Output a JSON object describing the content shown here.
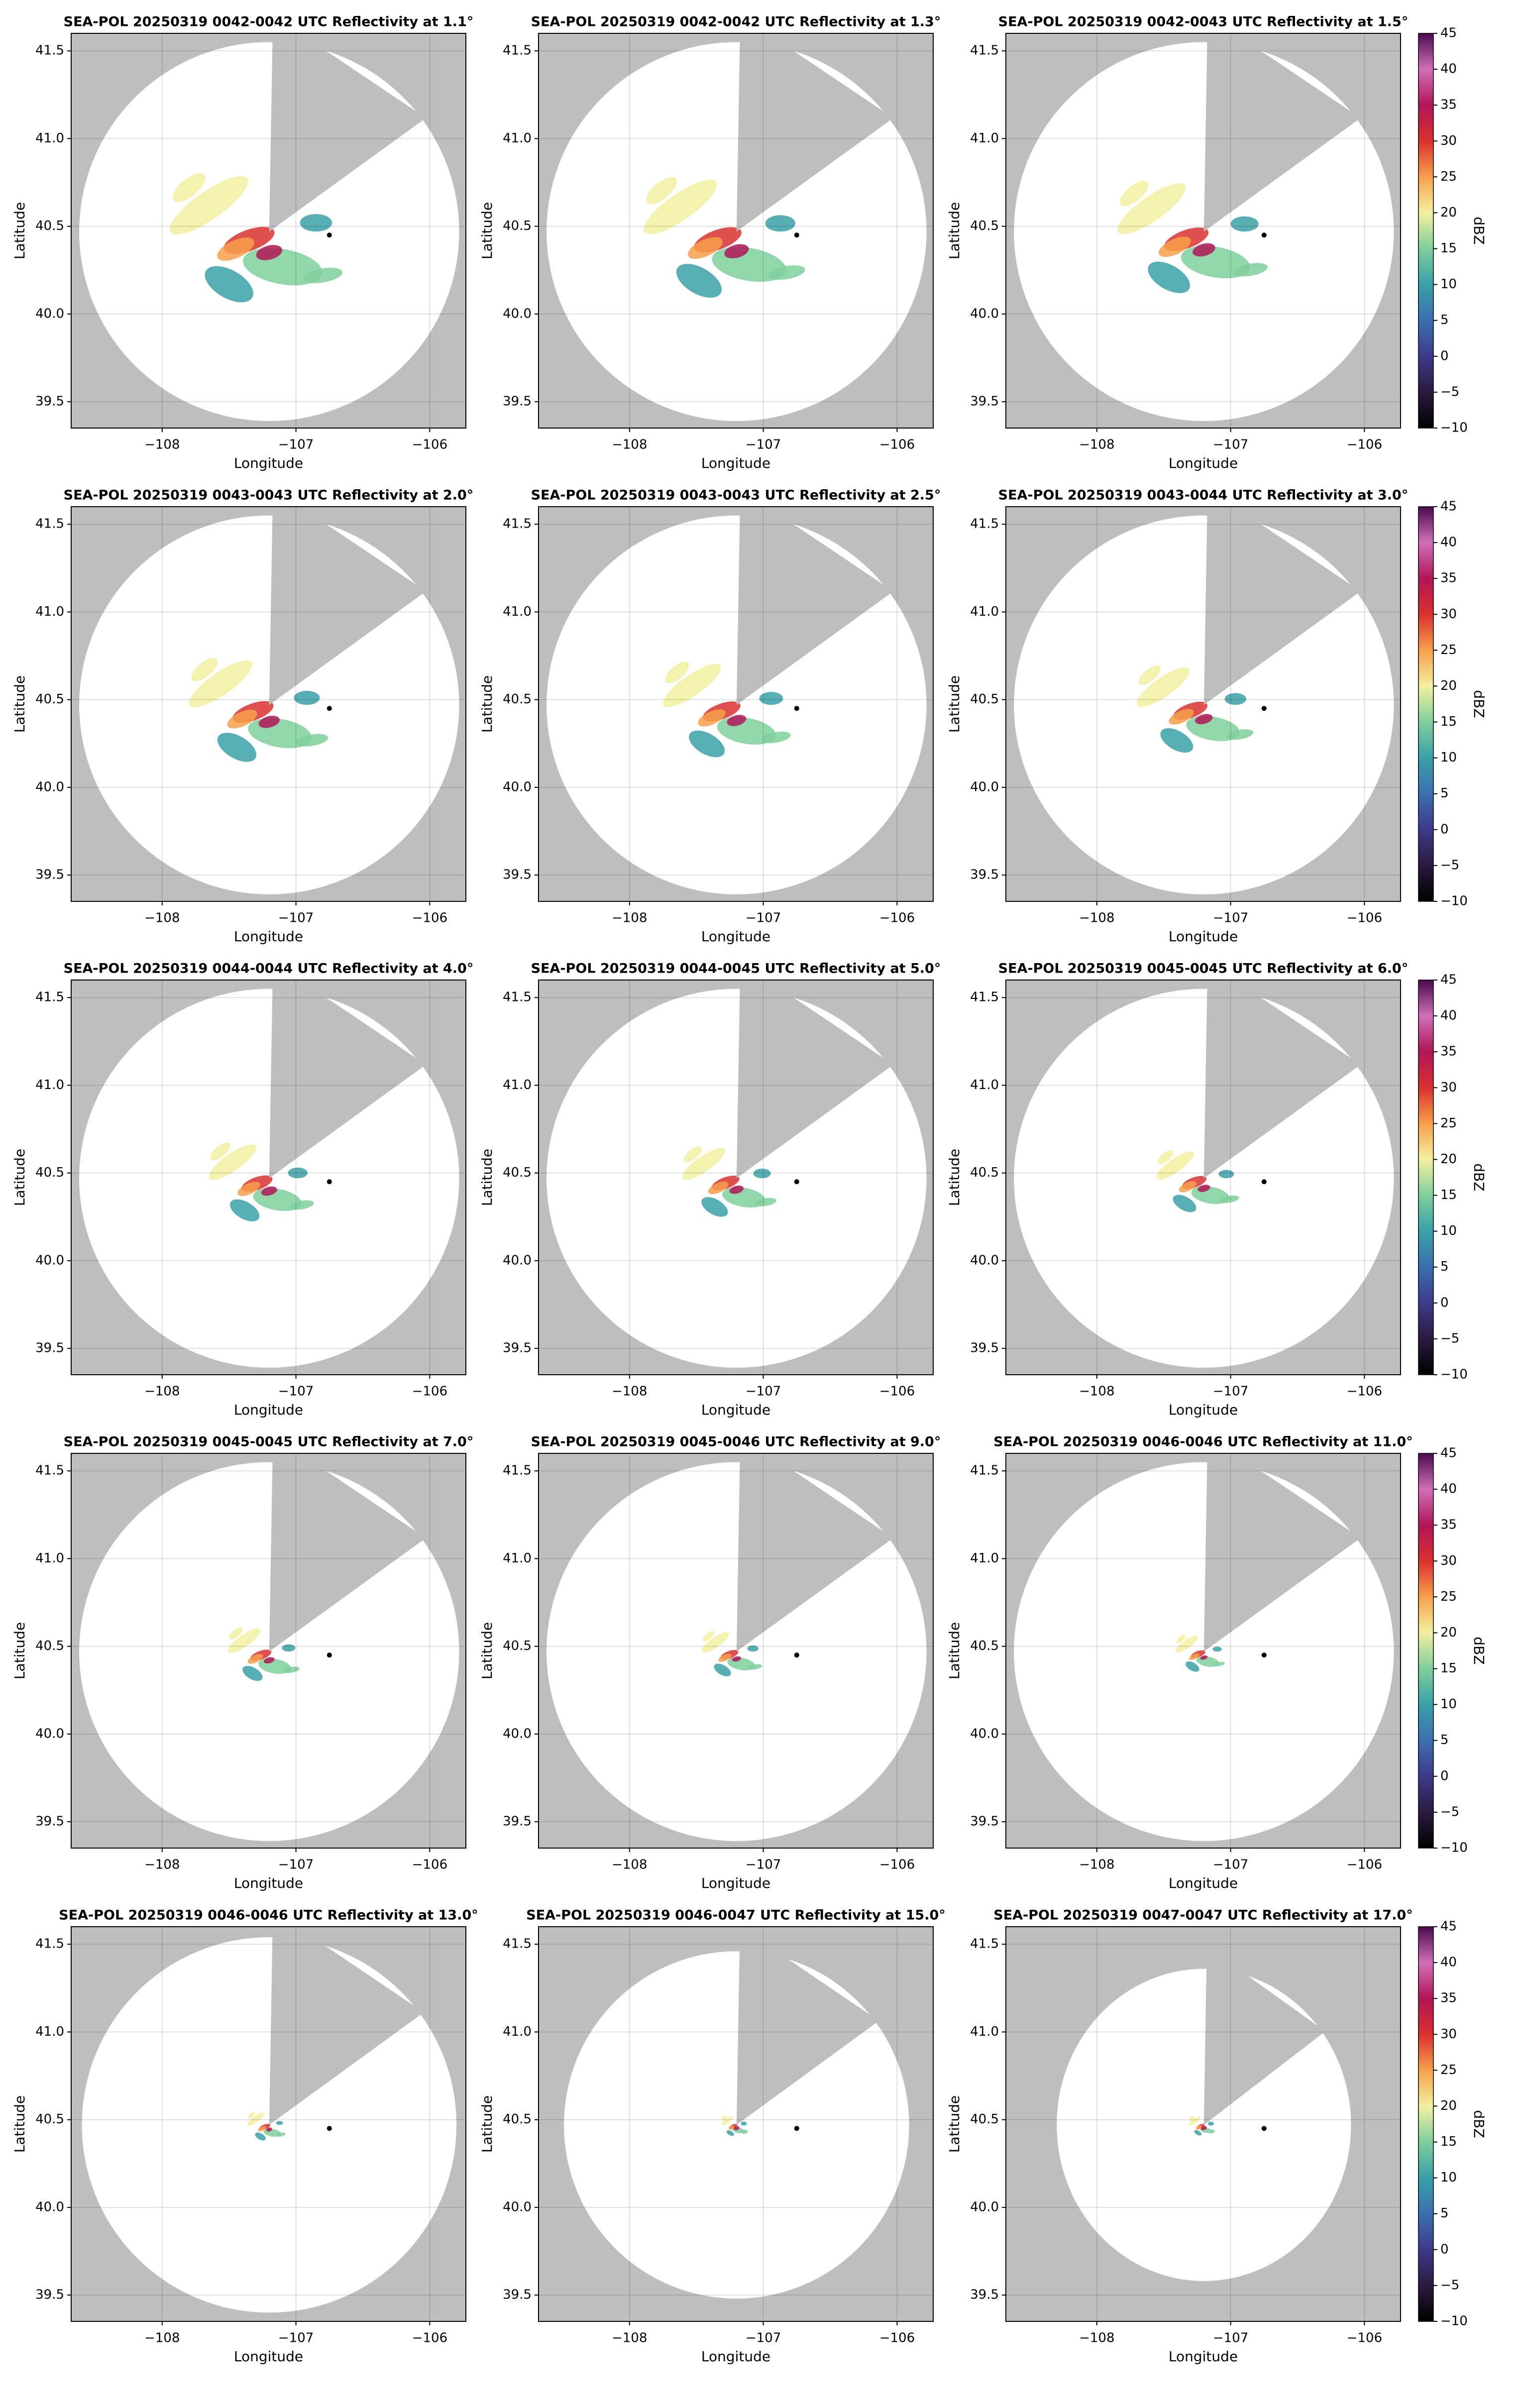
{
  "chart_data": [
    {
      "type": "radar",
      "title": "SEA-POL 20250319 0042-0042 UTC Reflectivity at 1.1°",
      "x_label": "Longitude",
      "y_label": "Latitude",
      "xlim": [
        -108.68,
        -105.73
      ],
      "ylim": [
        39.35,
        41.6
      ],
      "xticks": [
        {
          "value": -108,
          "label": "−108"
        },
        {
          "value": -107,
          "label": "−107"
        },
        {
          "value": -106,
          "label": "−106"
        }
      ],
      "yticks": [
        39.5,
        {
          "value": 40,
          "label": "40.0"
        },
        40.5,
        {
          "value": 41,
          "label": "41.0"
        },
        41.5
      ],
      "grid": true,
      "radar_center": [
        -107.2,
        40.47
      ],
      "coverage_radius": [
        1.42,
        1.08
      ],
      "blocked_azimuths": [
        1,
        14,
        54
      ],
      "site_marker": [
        -106.75,
        40.45
      ]
    },
    {
      "type": "radar",
      "title": "SEA-POL 20250319 0042-0042 UTC Reflectivity at 1.3°",
      "x_label": "Longitude",
      "y_label": "Latitude",
      "xlim": [
        -108.68,
        -105.73
      ],
      "ylim": [
        39.35,
        41.6
      ],
      "xticks": [
        {
          "value": -108,
          "label": "−108"
        },
        {
          "value": -107,
          "label": "−107"
        },
        {
          "value": -106,
          "label": "−106"
        }
      ],
      "yticks": [
        39.5,
        {
          "value": 40,
          "label": "40.0"
        },
        40.5,
        {
          "value": 41,
          "label": "41.0"
        },
        41.5
      ],
      "grid": true,
      "radar_center": [
        -107.2,
        40.47
      ],
      "coverage_radius": [
        1.42,
        1.08
      ],
      "blocked_azimuths": [
        1,
        14,
        54
      ],
      "site_marker": [
        -106.75,
        40.45
      ]
    },
    {
      "type": "radar",
      "title": "SEA-POL 20250319 0042-0043 UTC Reflectivity at 1.5°",
      "x_label": "Longitude",
      "y_label": "Latitude",
      "xlim": [
        -108.68,
        -105.73
      ],
      "ylim": [
        39.35,
        41.6
      ],
      "xticks": [
        {
          "value": -108,
          "label": "−108"
        },
        {
          "value": -107,
          "label": "−107"
        },
        {
          "value": -106,
          "label": "−106"
        }
      ],
      "yticks": [
        39.5,
        {
          "value": 40,
          "label": "40.0"
        },
        40.5,
        {
          "value": 41,
          "label": "41.0"
        },
        41.5
      ],
      "grid": true,
      "radar_center": [
        -107.2,
        40.47
      ],
      "coverage_radius": [
        1.42,
        1.08
      ],
      "blocked_azimuths": [
        1,
        14,
        54
      ],
      "site_marker": [
        -106.75,
        40.45
      ],
      "colorbar": {
        "label": "dBZ",
        "lim": [
          -10,
          45
        ],
        "ticks": [
          {
            "value": -10,
            "label": "−10"
          },
          {
            "value": -5,
            "label": "−5"
          },
          0,
          5,
          10,
          15,
          20,
          25,
          30,
          35,
          40,
          45
        ],
        "colors": [
          "#000000",
          "#2b1a3f",
          "#3d3a8a",
          "#3b6fb0",
          "#3aa0a8",
          "#7fcf9c",
          "#f2f0a0",
          "#f7a04b",
          "#d9312f",
          "#b01657",
          "#d070b8",
          "#4a0a4e"
        ]
      }
    },
    {
      "type": "radar",
      "title": "SEA-POL 20250319 0043-0043 UTC Reflectivity at 2.0°",
      "x_label": "Longitude",
      "y_label": "Latitude",
      "xlim": [
        -108.68,
        -105.73
      ],
      "ylim": [
        39.35,
        41.6
      ],
      "xticks": [
        {
          "value": -108,
          "label": "−108"
        },
        {
          "value": -107,
          "label": "−107"
        },
        {
          "value": -106,
          "label": "−106"
        }
      ],
      "yticks": [
        39.5,
        {
          "value": 40,
          "label": "40.0"
        },
        40.5,
        {
          "value": 41,
          "label": "41.0"
        },
        41.5
      ],
      "grid": true,
      "radar_center": [
        -107.2,
        40.47
      ],
      "coverage_radius": [
        1.42,
        1.08
      ],
      "blocked_azimuths": [
        1,
        14,
        54
      ],
      "site_marker": [
        -106.75,
        40.45
      ]
    },
    {
      "type": "radar",
      "title": "SEA-POL 20250319 0043-0043 UTC Reflectivity at 2.5°",
      "x_label": "Longitude",
      "y_label": "Latitude",
      "xlim": [
        -108.68,
        -105.73
      ],
      "ylim": [
        39.35,
        41.6
      ],
      "xticks": [
        {
          "value": -108,
          "label": "−108"
        },
        {
          "value": -107,
          "label": "−107"
        },
        {
          "value": -106,
          "label": "−106"
        }
      ],
      "yticks": [
        39.5,
        {
          "value": 40,
          "label": "40.0"
        },
        40.5,
        {
          "value": 41,
          "label": "41.0"
        },
        41.5
      ],
      "grid": true,
      "radar_center": [
        -107.2,
        40.47
      ],
      "coverage_radius": [
        1.42,
        1.08
      ],
      "blocked_azimuths": [
        1,
        14,
        54
      ],
      "site_marker": [
        -106.75,
        40.45
      ]
    },
    {
      "type": "radar",
      "title": "SEA-POL 20250319 0043-0044 UTC Reflectivity at 3.0°",
      "x_label": "Longitude",
      "y_label": "Latitude",
      "xlim": [
        -108.68,
        -105.73
      ],
      "ylim": [
        39.35,
        41.6
      ],
      "xticks": [
        {
          "value": -108,
          "label": "−108"
        },
        {
          "value": -107,
          "label": "−107"
        },
        {
          "value": -106,
          "label": "−106"
        }
      ],
      "yticks": [
        39.5,
        {
          "value": 40,
          "label": "40.0"
        },
        40.5,
        {
          "value": 41,
          "label": "41.0"
        },
        41.5
      ],
      "grid": true,
      "radar_center": [
        -107.2,
        40.47
      ],
      "coverage_radius": [
        1.42,
        1.08
      ],
      "blocked_azimuths": [
        1,
        14,
        54
      ],
      "site_marker": [
        -106.75,
        40.45
      ],
      "colorbar": {
        "label": "dBZ",
        "lim": [
          -10,
          45
        ],
        "ticks": [
          {
            "value": -10,
            "label": "−10"
          },
          {
            "value": -5,
            "label": "−5"
          },
          0,
          5,
          10,
          15,
          20,
          25,
          30,
          35,
          40,
          45
        ],
        "colors": [
          "#000000",
          "#2b1a3f",
          "#3d3a8a",
          "#3b6fb0",
          "#3aa0a8",
          "#7fcf9c",
          "#f2f0a0",
          "#f7a04b",
          "#d9312f",
          "#b01657",
          "#d070b8",
          "#4a0a4e"
        ]
      }
    },
    {
      "type": "radar",
      "title": "SEA-POL 20250319 0044-0044 UTC Reflectivity at 4.0°",
      "x_label": "Longitude",
      "y_label": "Latitude",
      "xlim": [
        -108.68,
        -105.73
      ],
      "ylim": [
        39.35,
        41.6
      ],
      "xticks": [
        {
          "value": -108,
          "label": "−108"
        },
        {
          "value": -107,
          "label": "−107"
        },
        {
          "value": -106,
          "label": "−106"
        }
      ],
      "yticks": [
        39.5,
        {
          "value": 40,
          "label": "40.0"
        },
        40.5,
        {
          "value": 41,
          "label": "41.0"
        },
        41.5
      ],
      "grid": true,
      "radar_center": [
        -107.2,
        40.47
      ],
      "coverage_radius": [
        1.42,
        1.08
      ],
      "blocked_azimuths": [
        1,
        14,
        54
      ],
      "site_marker": [
        -106.75,
        40.45
      ]
    },
    {
      "type": "radar",
      "title": "SEA-POL 20250319 0044-0045 UTC Reflectivity at 5.0°",
      "x_label": "Longitude",
      "y_label": "Latitude",
      "xlim": [
        -108.68,
        -105.73
      ],
      "ylim": [
        39.35,
        41.6
      ],
      "xticks": [
        {
          "value": -108,
          "label": "−108"
        },
        {
          "value": -107,
          "label": "−107"
        },
        {
          "value": -106,
          "label": "−106"
        }
      ],
      "yticks": [
        39.5,
        {
          "value": 40,
          "label": "40.0"
        },
        40.5,
        {
          "value": 41,
          "label": "41.0"
        },
        41.5
      ],
      "grid": true,
      "radar_center": [
        -107.2,
        40.47
      ],
      "coverage_radius": [
        1.42,
        1.08
      ],
      "blocked_azimuths": [
        1,
        14,
        54
      ],
      "site_marker": [
        -106.75,
        40.45
      ]
    },
    {
      "type": "radar",
      "title": "SEA-POL 20250319 0045-0045 UTC Reflectivity at 6.0°",
      "x_label": "Longitude",
      "y_label": "Latitude",
      "xlim": [
        -108.68,
        -105.73
      ],
      "ylim": [
        39.35,
        41.6
      ],
      "xticks": [
        {
          "value": -108,
          "label": "−108"
        },
        {
          "value": -107,
          "label": "−107"
        },
        {
          "value": -106,
          "label": "−106"
        }
      ],
      "yticks": [
        39.5,
        {
          "value": 40,
          "label": "40.0"
        },
        40.5,
        {
          "value": 41,
          "label": "41.0"
        },
        41.5
      ],
      "grid": true,
      "radar_center": [
        -107.2,
        40.47
      ],
      "coverage_radius": [
        1.42,
        1.08
      ],
      "blocked_azimuths": [
        1,
        14,
        54
      ],
      "site_marker": [
        -106.75,
        40.45
      ],
      "colorbar": {
        "label": "dBZ",
        "lim": [
          -10,
          45
        ],
        "ticks": [
          {
            "value": -10,
            "label": "−10"
          },
          {
            "value": -5,
            "label": "−5"
          },
          0,
          5,
          10,
          15,
          20,
          25,
          30,
          35,
          40,
          45
        ],
        "colors": [
          "#000000",
          "#2b1a3f",
          "#3d3a8a",
          "#3b6fb0",
          "#3aa0a8",
          "#7fcf9c",
          "#f2f0a0",
          "#f7a04b",
          "#d9312f",
          "#b01657",
          "#d070b8",
          "#4a0a4e"
        ]
      }
    },
    {
      "type": "radar",
      "title": "SEA-POL 20250319 0045-0045 UTC Reflectivity at 7.0°",
      "x_label": "Longitude",
      "y_label": "Latitude",
      "xlim": [
        -108.68,
        -105.73
      ],
      "ylim": [
        39.35,
        41.6
      ],
      "xticks": [
        {
          "value": -108,
          "label": "−108"
        },
        {
          "value": -107,
          "label": "−107"
        },
        {
          "value": -106,
          "label": "−106"
        }
      ],
      "yticks": [
        39.5,
        {
          "value": 40,
          "label": "40.0"
        },
        40.5,
        {
          "value": 41,
          "label": "41.0"
        },
        41.5
      ],
      "grid": true,
      "radar_center": [
        -107.2,
        40.47
      ],
      "coverage_radius": [
        1.42,
        1.08
      ],
      "blocked_azimuths": [
        1,
        14,
        54
      ],
      "site_marker": [
        -106.75,
        40.45
      ]
    },
    {
      "type": "radar",
      "title": "SEA-POL 20250319 0045-0046 UTC Reflectivity at 9.0°",
      "x_label": "Longitude",
      "y_label": "Latitude",
      "xlim": [
        -108.68,
        -105.73
      ],
      "ylim": [
        39.35,
        41.6
      ],
      "xticks": [
        {
          "value": -108,
          "label": "−108"
        },
        {
          "value": -107,
          "label": "−107"
        },
        {
          "value": -106,
          "label": "−106"
        }
      ],
      "yticks": [
        39.5,
        {
          "value": 40,
          "label": "40.0"
        },
        40.5,
        {
          "value": 41,
          "label": "41.0"
        },
        41.5
      ],
      "grid": true,
      "radar_center": [
        -107.2,
        40.47
      ],
      "coverage_radius": [
        1.42,
        1.08
      ],
      "blocked_azimuths": [
        1,
        14,
        54
      ],
      "site_marker": [
        -106.75,
        40.45
      ]
    },
    {
      "type": "radar",
      "title": "SEA-POL 20250319 0046-0046 UTC Reflectivity at 11.0°",
      "x_label": "Longitude",
      "y_label": "Latitude",
      "xlim": [
        -108.68,
        -105.73
      ],
      "ylim": [
        39.35,
        41.6
      ],
      "xticks": [
        {
          "value": -108,
          "label": "−108"
        },
        {
          "value": -107,
          "label": "−107"
        },
        {
          "value": -106,
          "label": "−106"
        }
      ],
      "yticks": [
        39.5,
        {
          "value": 40,
          "label": "40.0"
        },
        40.5,
        {
          "value": 41,
          "label": "41.0"
        },
        41.5
      ],
      "grid": true,
      "radar_center": [
        -107.2,
        40.47
      ],
      "coverage_radius": [
        1.42,
        1.08
      ],
      "blocked_azimuths": [
        1,
        14,
        54
      ],
      "site_marker": [
        -106.75,
        40.45
      ],
      "colorbar": {
        "label": "dBZ",
        "lim": [
          -10,
          45
        ],
        "ticks": [
          {
            "value": -10,
            "label": "−10"
          },
          {
            "value": -5,
            "label": "−5"
          },
          0,
          5,
          10,
          15,
          20,
          25,
          30,
          35,
          40,
          45
        ],
        "colors": [
          "#000000",
          "#2b1a3f",
          "#3d3a8a",
          "#3b6fb0",
          "#3aa0a8",
          "#7fcf9c",
          "#f2f0a0",
          "#f7a04b",
          "#d9312f",
          "#b01657",
          "#d070b8",
          "#4a0a4e"
        ]
      }
    },
    {
      "type": "radar",
      "title": "SEA-POL 20250319 0046-0046 UTC Reflectivity at 13.0°",
      "x_label": "Longitude",
      "y_label": "Latitude",
      "xlim": [
        -108.68,
        -105.73
      ],
      "ylim": [
        39.35,
        41.6
      ],
      "xticks": [
        {
          "value": -108,
          "label": "−108"
        },
        {
          "value": -107,
          "label": "−107"
        },
        {
          "value": -106,
          "label": "−106"
        }
      ],
      "yticks": [
        39.5,
        {
          "value": 40,
          "label": "40.0"
        },
        40.5,
        {
          "value": 41,
          "label": "41.0"
        },
        41.5
      ],
      "grid": true,
      "radar_center": [
        -107.2,
        40.47
      ],
      "coverage_radius": [
        1.4,
        1.07
      ],
      "blocked_azimuths": [
        1,
        14,
        54
      ],
      "site_marker": [
        -106.75,
        40.45
      ]
    },
    {
      "type": "radar",
      "title": "SEA-POL 20250319 0046-0047 UTC Reflectivity at 15.0°",
      "x_label": "Longitude",
      "y_label": "Latitude",
      "xlim": [
        -108.68,
        -105.73
      ],
      "ylim": [
        39.35,
        41.6
      ],
      "xticks": [
        {
          "value": -108,
          "label": "−108"
        },
        {
          "value": -107,
          "label": "−107"
        },
        {
          "value": -106,
          "label": "−106"
        }
      ],
      "yticks": [
        39.5,
        {
          "value": 40,
          "label": "40.0"
        },
        40.5,
        {
          "value": 41,
          "label": "41.0"
        },
        41.5
      ],
      "grid": true,
      "radar_center": [
        -107.2,
        40.47
      ],
      "coverage_radius": [
        1.29,
        0.99
      ],
      "blocked_azimuths": [
        1,
        14,
        54
      ],
      "site_marker": [
        -106.75,
        40.45
      ]
    },
    {
      "type": "radar",
      "title": "SEA-POL 20250319 0047-0047 UTC Reflectivity at 17.0°",
      "x_label": "Longitude",
      "y_label": "Latitude",
      "xlim": [
        -108.68,
        -105.73
      ],
      "ylim": [
        39.35,
        41.6
      ],
      "xticks": [
        {
          "value": -108,
          "label": "−108"
        },
        {
          "value": -107,
          "label": "−107"
        },
        {
          "value": -106,
          "label": "−106"
        }
      ],
      "yticks": [
        39.5,
        {
          "value": 40,
          "label": "40.0"
        },
        40.5,
        {
          "value": 41,
          "label": "41.0"
        },
        41.5
      ],
      "grid": true,
      "radar_center": [
        -107.2,
        40.47
      ],
      "coverage_radius": [
        1.1,
        0.89
      ],
      "blocked_azimuths": [
        1,
        14,
        54
      ],
      "site_marker": [
        -106.75,
        40.45
      ],
      "colorbar": {
        "label": "dBZ",
        "lim": [
          -10,
          45
        ],
        "ticks": [
          {
            "value": -10,
            "label": "−10"
          },
          {
            "value": -5,
            "label": "−5"
          },
          0,
          5,
          10,
          15,
          20,
          25,
          30,
          35,
          40,
          45
        ],
        "colors": [
          "#000000",
          "#2b1a3f",
          "#3d3a8a",
          "#3b6fb0",
          "#3aa0a8",
          "#7fcf9c",
          "#f2f0a0",
          "#f7a04b",
          "#d9312f",
          "#b01657",
          "#d070b8",
          "#4a0a4e"
        ]
      }
    }
  ]
}
